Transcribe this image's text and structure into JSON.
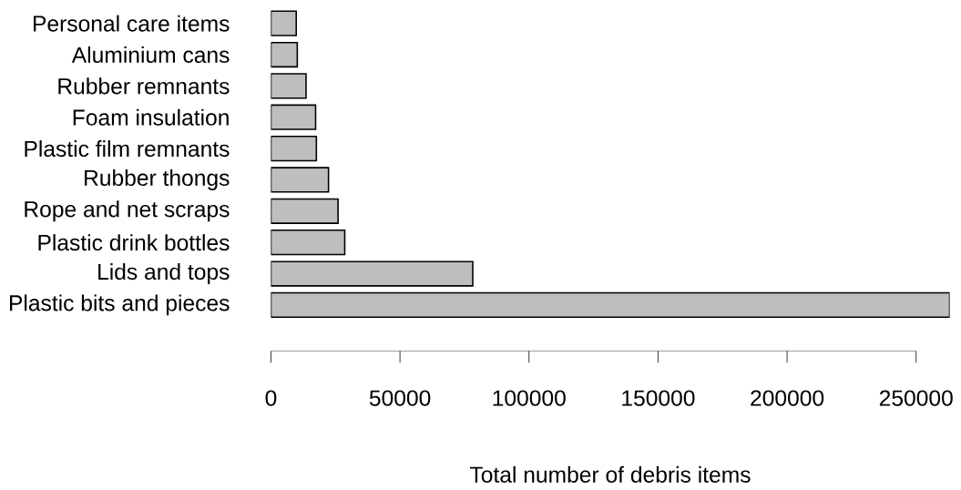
{
  "chart_data": {
    "type": "bar",
    "orientation": "horizontal",
    "xlabel": "Total number of debris items",
    "categories": [
      "Personal care items",
      "Aluminium cans",
      "Rubber remnants",
      "Foam insulation",
      "Plastic film remnants",
      "Rubber thongs",
      "Rope and net scraps",
      "Plastic drink bottles",
      "Lids and tops",
      "Plastic bits and pieces"
    ],
    "values": [
      9800,
      10200,
      13600,
      17300,
      17600,
      22300,
      26000,
      28600,
      78200,
      263000
    ],
    "color": "#bebebe",
    "xlim": [
      0,
      263000
    ],
    "xticks": [
      0,
      50000,
      100000,
      150000,
      200000,
      250000
    ],
    "grid": false
  }
}
